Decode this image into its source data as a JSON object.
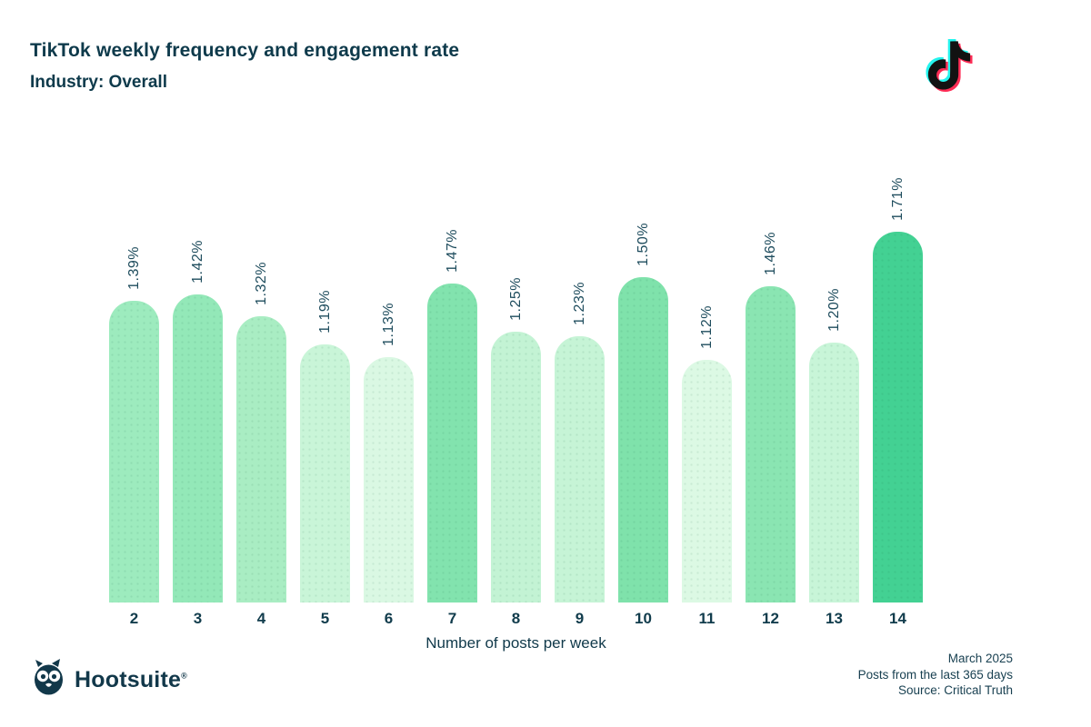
{
  "header": {
    "title": "TikTok weekly frequency and engagement rate",
    "subtitle": "Industry: Overall"
  },
  "brand": {
    "tiktok_icon": "tiktok-icon",
    "hootsuite_owl_icon": "hootsuite-owl-icon",
    "hootsuite_wordmark": "Hootsuite",
    "registered_mark": "®"
  },
  "chart_data": {
    "type": "bar",
    "title": "TikTok weekly frequency and engagement rate",
    "subtitle": "Industry: Overall",
    "categories": [
      "2",
      "3",
      "4",
      "5",
      "6",
      "7",
      "8",
      "9",
      "10",
      "11",
      "12",
      "13",
      "14"
    ],
    "values": [
      1.39,
      1.42,
      1.32,
      1.19,
      1.13,
      1.47,
      1.25,
      1.23,
      1.5,
      1.12,
      1.46,
      1.2,
      1.71
    ],
    "value_labels": [
      "1.39%",
      "1.42%",
      "1.32%",
      "1.19%",
      "1.13%",
      "1.47%",
      "1.25%",
      "1.23%",
      "1.50%",
      "1.12%",
      "1.46%",
      "1.20%",
      "1.71%"
    ],
    "bar_colors": [
      "#9debbe",
      "#93e8b8",
      "#a9edc3",
      "#c9f5d8",
      "#daf8e3",
      "#82e3ae",
      "#c3f3d4",
      "#c6f4d6",
      "#7fe2ab",
      "#dcf9e4",
      "#8ae5b2",
      "#c8f5d8",
      "#43d193"
    ],
    "xlabel": "Number of posts per week",
    "ylabel": "",
    "ylim": [
      0,
      1.71
    ],
    "grid": false,
    "legend": "none",
    "value_label_rotation": -90
  },
  "footer": {
    "line1": "March 2025",
    "line2": "Posts from the last 365 days",
    "line3": "Source: Critical Truth"
  },
  "colors": {
    "text_dark": "#0e3a4b",
    "value_label": "#1e4c5d",
    "max_bar": "#43d193",
    "tiktok_cyan": "#25f4ee",
    "tiktok_pink": "#fe2c55",
    "tiktok_black": "#121212"
  }
}
